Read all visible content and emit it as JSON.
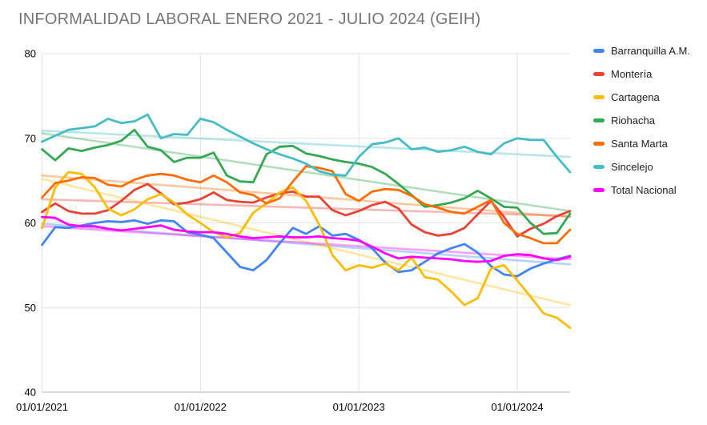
{
  "title": "INFORMALIDAD LABORAL ENERO 2021 - JULIO 2024 (GEIH)",
  "chart_data": {
    "type": "line",
    "title": "INFORMALIDAD LABORAL ENERO 2021 - JULIO 2024 (GEIH)",
    "legend_position": "right",
    "grid": true,
    "x_axis": {
      "point_count": 41,
      "start": "01/2021",
      "interval": "monthly",
      "tick_labels": [
        "01/01/2021",
        "01/01/2022",
        "01/01/2023",
        "01/01/2024"
      ],
      "tick_point_index": [
        0,
        12,
        24,
        36
      ]
    },
    "y_axis": {
      "range": [
        40,
        80
      ],
      "ticks": [
        80,
        70,
        60,
        50,
        40
      ]
    },
    "series": [
      {
        "name": "Barranquilla A.M.",
        "color": "#4285F4",
        "trend": [
          59.9,
          55.1
        ],
        "values": [
          57.4,
          59.5,
          59.4,
          59.7,
          60.0,
          60.2,
          60.1,
          60.3,
          59.9,
          60.3,
          60.2,
          58.9,
          58.6,
          58.2,
          56.5,
          54.8,
          54.4,
          55.6,
          57.6,
          59.4,
          58.7,
          59.6,
          58.5,
          58.7,
          58.0,
          57.0,
          55.3,
          54.2,
          54.4,
          55.4,
          56.4,
          57.0,
          57.5,
          56.5,
          54.9,
          53.9,
          53.7,
          54.6,
          55.2,
          55.7,
          56.1
        ]
      },
      {
        "name": "Montería",
        "color": "#EA4335",
        "trend": [
          62.8,
          60.8
        ],
        "values": [
          61.3,
          62.3,
          61.4,
          61.1,
          61.1,
          61.5,
          62.6,
          63.9,
          64.6,
          63.5,
          62.2,
          62.4,
          62.8,
          63.6,
          62.7,
          62.5,
          62.4,
          63.0,
          63.5,
          63.7,
          63.1,
          63.1,
          61.5,
          60.9,
          61.4,
          62.1,
          62.5,
          61.7,
          59.8,
          58.9,
          58.5,
          58.7,
          59.4,
          61.0,
          62.6,
          60.7,
          58.4,
          59.3,
          59.9,
          60.8,
          61.4
        ]
      },
      {
        "name": "Cartagena",
        "color": "#FBBC04",
        "trend": [
          65.2,
          50.3
        ],
        "values": [
          59.4,
          64.2,
          66.0,
          65.8,
          64.2,
          61.7,
          60.9,
          61.6,
          62.8,
          63.4,
          62.4,
          61.0,
          60.0,
          58.9,
          58.3,
          58.8,
          61.2,
          62.3,
          63.6,
          64.2,
          62.6,
          59.8,
          56.2,
          54.4,
          55.0,
          54.7,
          55.2,
          54.4,
          55.9,
          53.6,
          53.3,
          51.9,
          50.3,
          51.1,
          54.6,
          55.0,
          53.2,
          51.3,
          49.3,
          48.8,
          47.6
        ]
      },
      {
        "name": "Riohacha",
        "color": "#34A853",
        "trend": [
          70.6,
          61.4
        ],
        "values": [
          68.7,
          67.4,
          68.8,
          68.5,
          68.9,
          69.2,
          69.7,
          71.0,
          69.0,
          68.6,
          67.2,
          67.7,
          67.7,
          68.3,
          65.6,
          64.9,
          64.8,
          68.1,
          69.0,
          69.1,
          68.2,
          67.9,
          67.5,
          67.2,
          67.0,
          66.6,
          65.8,
          64.6,
          63.3,
          61.9,
          62.1,
          62.4,
          62.9,
          63.8,
          62.9,
          61.9,
          61.8,
          60.0,
          58.7,
          58.8,
          61.1
        ]
      },
      {
        "name": "Santa Marta",
        "color": "#FF6D01",
        "trend": [
          65.6,
          60.7
        ],
        "values": [
          63.0,
          64.7,
          65.0,
          65.4,
          65.3,
          64.5,
          64.3,
          65.1,
          65.6,
          65.8,
          65.6,
          65.1,
          64.8,
          65.6,
          64.8,
          63.6,
          63.3,
          62.3,
          62.9,
          64.9,
          66.7,
          66.5,
          66.1,
          63.4,
          62.6,
          63.7,
          64.0,
          63.9,
          63.2,
          62.2,
          61.8,
          61.3,
          61.1,
          61.9,
          62.7,
          60.0,
          58.7,
          58.2,
          57.6,
          57.6,
          59.2
        ]
      },
      {
        "name": "Sincelejo",
        "color": "#46BDC6",
        "trend": [
          70.9,
          67.8
        ],
        "values": [
          69.6,
          70.3,
          71.0,
          71.2,
          71.4,
          72.3,
          71.8,
          72.0,
          72.8,
          70.0,
          70.5,
          70.4,
          72.3,
          71.9,
          71.0,
          70.2,
          69.4,
          68.7,
          68.1,
          67.6,
          67.0,
          66.1,
          65.7,
          65.6,
          67.8,
          69.3,
          69.5,
          70.0,
          68.7,
          68.9,
          68.4,
          68.6,
          69.0,
          68.4,
          68.1,
          69.4,
          70.0,
          69.8,
          69.8,
          67.8,
          66.0
        ]
      },
      {
        "name": "Total Nacional",
        "color": "#FF00FF",
        "trend": [
          59.6,
          55.7
        ],
        "values": [
          60.7,
          60.6,
          59.8,
          59.6,
          59.6,
          59.3,
          59.1,
          59.3,
          59.5,
          59.7,
          59.2,
          59.0,
          58.9,
          58.9,
          58.7,
          58.4,
          58.2,
          58.3,
          58.4,
          58.3,
          58.3,
          58.4,
          58.2,
          58.1,
          57.9,
          57.2,
          56.4,
          55.8,
          56.0,
          55.9,
          55.8,
          55.7,
          55.5,
          55.4,
          55.5,
          56.1,
          56.3,
          56.2,
          55.8,
          55.6,
          56.0
        ]
      }
    ],
    "style": {
      "grid_color": "#e3e3e3",
      "axis_color": "#b0b0b0",
      "tick_label_color": "#000000",
      "title_color": "#757575",
      "trend_opacity": 0.38
    }
  }
}
